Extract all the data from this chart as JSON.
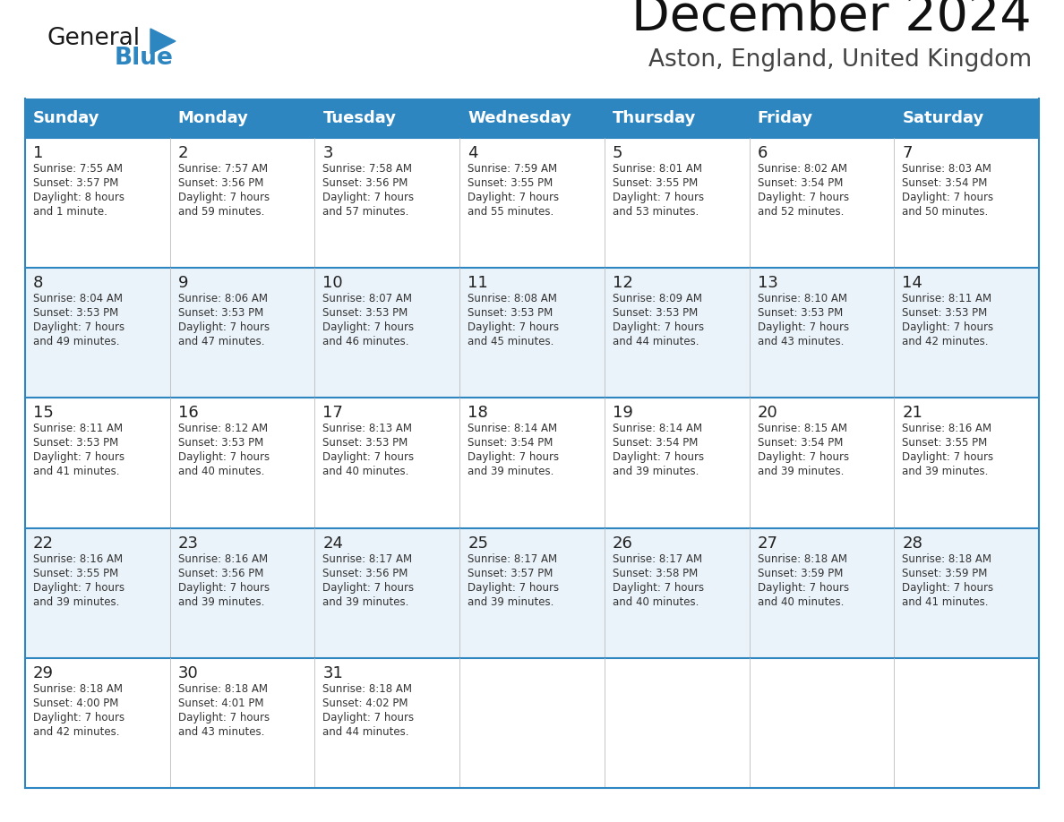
{
  "title": "December 2024",
  "subtitle": "Aston, England, United Kingdom",
  "header_color": "#2E86C1",
  "header_text_color": "#FFFFFF",
  "border_color": "#2E86C1",
  "days_of_week": [
    "Sunday",
    "Monday",
    "Tuesday",
    "Wednesday",
    "Thursday",
    "Friday",
    "Saturday"
  ],
  "logo_general_color": "#1a1a1a",
  "logo_blue_color": "#2E86C1",
  "calendar_data": [
    [
      {
        "day": 1,
        "sunrise": "7:55 AM",
        "sunset": "3:57 PM",
        "daylight_line1": "Daylight: 8 hours",
        "daylight_line2": "and 1 minute."
      },
      {
        "day": 2,
        "sunrise": "7:57 AM",
        "sunset": "3:56 PM",
        "daylight_line1": "Daylight: 7 hours",
        "daylight_line2": "and 59 minutes."
      },
      {
        "day": 3,
        "sunrise": "7:58 AM",
        "sunset": "3:56 PM",
        "daylight_line1": "Daylight: 7 hours",
        "daylight_line2": "and 57 minutes."
      },
      {
        "day": 4,
        "sunrise": "7:59 AM",
        "sunset": "3:55 PM",
        "daylight_line1": "Daylight: 7 hours",
        "daylight_line2": "and 55 minutes."
      },
      {
        "day": 5,
        "sunrise": "8:01 AM",
        "sunset": "3:55 PM",
        "daylight_line1": "Daylight: 7 hours",
        "daylight_line2": "and 53 minutes."
      },
      {
        "day": 6,
        "sunrise": "8:02 AM",
        "sunset": "3:54 PM",
        "daylight_line1": "Daylight: 7 hours",
        "daylight_line2": "and 52 minutes."
      },
      {
        "day": 7,
        "sunrise": "8:03 AM",
        "sunset": "3:54 PM",
        "daylight_line1": "Daylight: 7 hours",
        "daylight_line2": "and 50 minutes."
      }
    ],
    [
      {
        "day": 8,
        "sunrise": "8:04 AM",
        "sunset": "3:53 PM",
        "daylight_line1": "Daylight: 7 hours",
        "daylight_line2": "and 49 minutes."
      },
      {
        "day": 9,
        "sunrise": "8:06 AM",
        "sunset": "3:53 PM",
        "daylight_line1": "Daylight: 7 hours",
        "daylight_line2": "and 47 minutes."
      },
      {
        "day": 10,
        "sunrise": "8:07 AM",
        "sunset": "3:53 PM",
        "daylight_line1": "Daylight: 7 hours",
        "daylight_line2": "and 46 minutes."
      },
      {
        "day": 11,
        "sunrise": "8:08 AM",
        "sunset": "3:53 PM",
        "daylight_line1": "Daylight: 7 hours",
        "daylight_line2": "and 45 minutes."
      },
      {
        "day": 12,
        "sunrise": "8:09 AM",
        "sunset": "3:53 PM",
        "daylight_line1": "Daylight: 7 hours",
        "daylight_line2": "and 44 minutes."
      },
      {
        "day": 13,
        "sunrise": "8:10 AM",
        "sunset": "3:53 PM",
        "daylight_line1": "Daylight: 7 hours",
        "daylight_line2": "and 43 minutes."
      },
      {
        "day": 14,
        "sunrise": "8:11 AM",
        "sunset": "3:53 PM",
        "daylight_line1": "Daylight: 7 hours",
        "daylight_line2": "and 42 minutes."
      }
    ],
    [
      {
        "day": 15,
        "sunrise": "8:11 AM",
        "sunset": "3:53 PM",
        "daylight_line1": "Daylight: 7 hours",
        "daylight_line2": "and 41 minutes."
      },
      {
        "day": 16,
        "sunrise": "8:12 AM",
        "sunset": "3:53 PM",
        "daylight_line1": "Daylight: 7 hours",
        "daylight_line2": "and 40 minutes."
      },
      {
        "day": 17,
        "sunrise": "8:13 AM",
        "sunset": "3:53 PM",
        "daylight_line1": "Daylight: 7 hours",
        "daylight_line2": "and 40 minutes."
      },
      {
        "day": 18,
        "sunrise": "8:14 AM",
        "sunset": "3:54 PM",
        "daylight_line1": "Daylight: 7 hours",
        "daylight_line2": "and 39 minutes."
      },
      {
        "day": 19,
        "sunrise": "8:14 AM",
        "sunset": "3:54 PM",
        "daylight_line1": "Daylight: 7 hours",
        "daylight_line2": "and 39 minutes."
      },
      {
        "day": 20,
        "sunrise": "8:15 AM",
        "sunset": "3:54 PM",
        "daylight_line1": "Daylight: 7 hours",
        "daylight_line2": "and 39 minutes."
      },
      {
        "day": 21,
        "sunrise": "8:16 AM",
        "sunset": "3:55 PM",
        "daylight_line1": "Daylight: 7 hours",
        "daylight_line2": "and 39 minutes."
      }
    ],
    [
      {
        "day": 22,
        "sunrise": "8:16 AM",
        "sunset": "3:55 PM",
        "daylight_line1": "Daylight: 7 hours",
        "daylight_line2": "and 39 minutes."
      },
      {
        "day": 23,
        "sunrise": "8:16 AM",
        "sunset": "3:56 PM",
        "daylight_line1": "Daylight: 7 hours",
        "daylight_line2": "and 39 minutes."
      },
      {
        "day": 24,
        "sunrise": "8:17 AM",
        "sunset": "3:56 PM",
        "daylight_line1": "Daylight: 7 hours",
        "daylight_line2": "and 39 minutes."
      },
      {
        "day": 25,
        "sunrise": "8:17 AM",
        "sunset": "3:57 PM",
        "daylight_line1": "Daylight: 7 hours",
        "daylight_line2": "and 39 minutes."
      },
      {
        "day": 26,
        "sunrise": "8:17 AM",
        "sunset": "3:58 PM",
        "daylight_line1": "Daylight: 7 hours",
        "daylight_line2": "and 40 minutes."
      },
      {
        "day": 27,
        "sunrise": "8:18 AM",
        "sunset": "3:59 PM",
        "daylight_line1": "Daylight: 7 hours",
        "daylight_line2": "and 40 minutes."
      },
      {
        "day": 28,
        "sunrise": "8:18 AM",
        "sunset": "3:59 PM",
        "daylight_line1": "Daylight: 7 hours",
        "daylight_line2": "and 41 minutes."
      }
    ],
    [
      {
        "day": 29,
        "sunrise": "8:18 AM",
        "sunset": "4:00 PM",
        "daylight_line1": "Daylight: 7 hours",
        "daylight_line2": "and 42 minutes."
      },
      {
        "day": 30,
        "sunrise": "8:18 AM",
        "sunset": "4:01 PM",
        "daylight_line1": "Daylight: 7 hours",
        "daylight_line2": "and 43 minutes."
      },
      {
        "day": 31,
        "sunrise": "8:18 AM",
        "sunset": "4:02 PM",
        "daylight_line1": "Daylight: 7 hours",
        "daylight_line2": "and 44 minutes."
      },
      null,
      null,
      null,
      null
    ]
  ]
}
